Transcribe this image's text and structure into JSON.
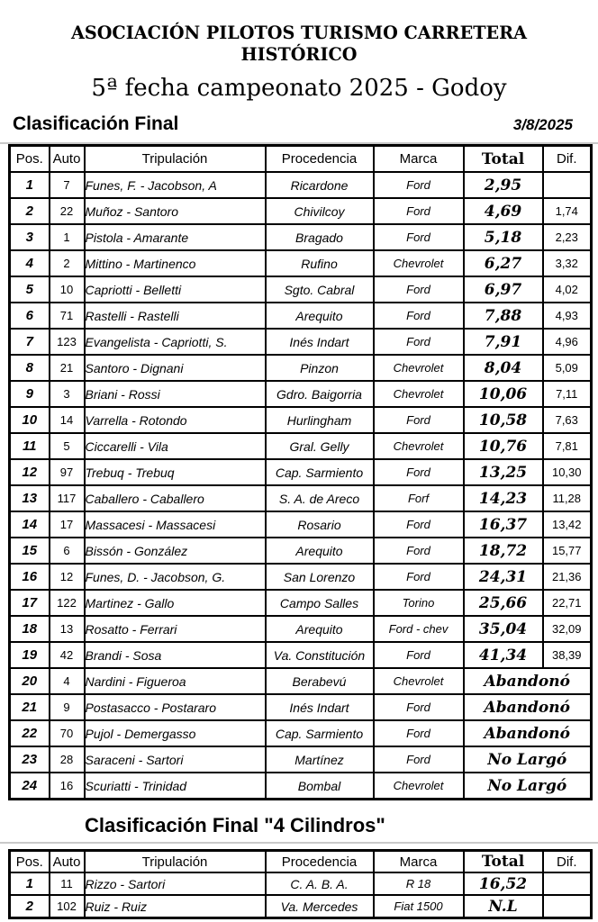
{
  "page": {
    "association": "ASOCIACIÓN PILOTOS TURISMO CARRETERA HISTÓRICO",
    "event": "5ª fecha campeonato 2025 - Godoy"
  },
  "section1": {
    "title": "Clasificación Final",
    "date": "3/8/2025"
  },
  "columns": {
    "pos": "Pos.",
    "auto": "Auto",
    "tripulacion": "Tripulación",
    "procedencia": "Procedencia",
    "marca": "Marca",
    "total": "Total",
    "dif": "Dif."
  },
  "main_table": {
    "rows": [
      {
        "pos": "1",
        "auto": "7",
        "tripulacion": "Funes, F. - Jacobson, A",
        "procedencia": "Ricardone",
        "marca": "Ford",
        "total": "2,95",
        "dif": ""
      },
      {
        "pos": "2",
        "auto": "22",
        "tripulacion": "Muñoz - Santoro",
        "procedencia": "Chivilcoy",
        "marca": "Ford",
        "total": "4,69",
        "dif": "1,74"
      },
      {
        "pos": "3",
        "auto": "1",
        "tripulacion": "Pistola - Amarante",
        "procedencia": "Bragado",
        "marca": "Ford",
        "total": "5,18",
        "dif": "2,23"
      },
      {
        "pos": "4",
        "auto": "2",
        "tripulacion": "Mittino - Martinenco",
        "procedencia": "Rufino",
        "marca": "Chevrolet",
        "total": "6,27",
        "dif": "3,32"
      },
      {
        "pos": "5",
        "auto": "10",
        "tripulacion": "Capriotti - Belletti",
        "procedencia": "Sgto. Cabral",
        "marca": "Ford",
        "total": "6,97",
        "dif": "4,02"
      },
      {
        "pos": "6",
        "auto": "71",
        "tripulacion": "Rastelli - Rastelli",
        "procedencia": "Arequito",
        "marca": "Ford",
        "total": "7,88",
        "dif": "4,93"
      },
      {
        "pos": "7",
        "auto": "123",
        "tripulacion": "Evangelista - Capriotti, S.",
        "procedencia": "Inés Indart",
        "marca": "Ford",
        "total": "7,91",
        "dif": "4,96"
      },
      {
        "pos": "8",
        "auto": "21",
        "tripulacion": "Santoro - Dignani",
        "procedencia": "Pinzon",
        "marca": "Chevrolet",
        "total": "8,04",
        "dif": "5,09"
      },
      {
        "pos": "9",
        "auto": "3",
        "tripulacion": "Briani - Rossi",
        "procedencia": "Gdro. Baigorria",
        "marca": "Chevrolet",
        "total": "10,06",
        "dif": "7,11"
      },
      {
        "pos": "10",
        "auto": "14",
        "tripulacion": "Varrella - Rotondo",
        "procedencia": "Hurlingham",
        "marca": "Ford",
        "total": "10,58",
        "dif": "7,63"
      },
      {
        "pos": "11",
        "auto": "5",
        "tripulacion": "Ciccarelli - Vila",
        "procedencia": "Gral. Gelly",
        "marca": "Chevrolet",
        "total": "10,76",
        "dif": "7,81"
      },
      {
        "pos": "12",
        "auto": "97",
        "tripulacion": "Trebuq - Trebuq",
        "procedencia": "Cap. Sarmiento",
        "marca": "Ford",
        "total": "13,25",
        "dif": "10,30"
      },
      {
        "pos": "13",
        "auto": "117",
        "tripulacion": "Caballero - Caballero",
        "procedencia": "S. A. de Areco",
        "marca": "Forf",
        "total": "14,23",
        "dif": "11,28"
      },
      {
        "pos": "14",
        "auto": "17",
        "tripulacion": "Massacesi - Massacesi",
        "procedencia": "Rosario",
        "marca": "Ford",
        "total": "16,37",
        "dif": "13,42"
      },
      {
        "pos": "15",
        "auto": "6",
        "tripulacion": "Bissón - González",
        "procedencia": "Arequito",
        "marca": "Ford",
        "total": "18,72",
        "dif": "15,77"
      },
      {
        "pos": "16",
        "auto": "12",
        "tripulacion": "Funes, D. - Jacobson, G.",
        "procedencia": "San Lorenzo",
        "marca": "Ford",
        "total": "24,31",
        "dif": "21,36"
      },
      {
        "pos": "17",
        "auto": "122",
        "tripulacion": "Martinez - Gallo",
        "procedencia": "Campo Salles",
        "marca": "Torino",
        "total": "25,66",
        "dif": "22,71"
      },
      {
        "pos": "18",
        "auto": "13",
        "tripulacion": "Rosatto - Ferrari",
        "procedencia": "Arequito",
        "marca": "Ford - chev",
        "total": "35,04",
        "dif": "32,09"
      },
      {
        "pos": "19",
        "auto": "42",
        "tripulacion": "Brandi - Sosa",
        "procedencia": "Va. Constitución",
        "marca": "Ford",
        "total": "41,34",
        "dif": "38,39"
      },
      {
        "pos": "20",
        "auto": "4",
        "tripulacion": "Nardini - Figueroa",
        "procedencia": "Berabevú",
        "marca": "Chevrolet",
        "status": "Abandonó"
      },
      {
        "pos": "21",
        "auto": "9",
        "tripulacion": "Postasacco - Postararo",
        "procedencia": "Inés Indart",
        "marca": "Ford",
        "status": "Abandonó"
      },
      {
        "pos": "22",
        "auto": "70",
        "tripulacion": "Pujol - Demergasso",
        "procedencia": "Cap. Sarmiento",
        "marca": "Ford",
        "status": "Abandonó"
      },
      {
        "pos": "23",
        "auto": "28",
        "tripulacion": "Saraceni - Sartori",
        "procedencia": "Martínez",
        "marca": "Ford",
        "status": "No Largó"
      },
      {
        "pos": "24",
        "auto": "16",
        "tripulacion": "Scuriatti - Trinidad",
        "procedencia": "Bombal",
        "marca": "Chevrolet",
        "status": "No Largó"
      }
    ]
  },
  "section2": {
    "title": "Clasificación Final \"4 Cilindros\""
  },
  "cilindros_table": {
    "rows": [
      {
        "pos": "1",
        "auto": "11",
        "tripulacion": "Rizzo - Sartori",
        "procedencia": "C. A. B. A.",
        "marca": "R 18",
        "total": "16,52",
        "dif": ""
      },
      {
        "pos": "2",
        "auto": "102",
        "tripulacion": "Ruiz - Ruiz",
        "procedencia": "Va. Mercedes",
        "marca": "Fiat 1500",
        "total": "N.L",
        "dif": ""
      }
    ]
  }
}
